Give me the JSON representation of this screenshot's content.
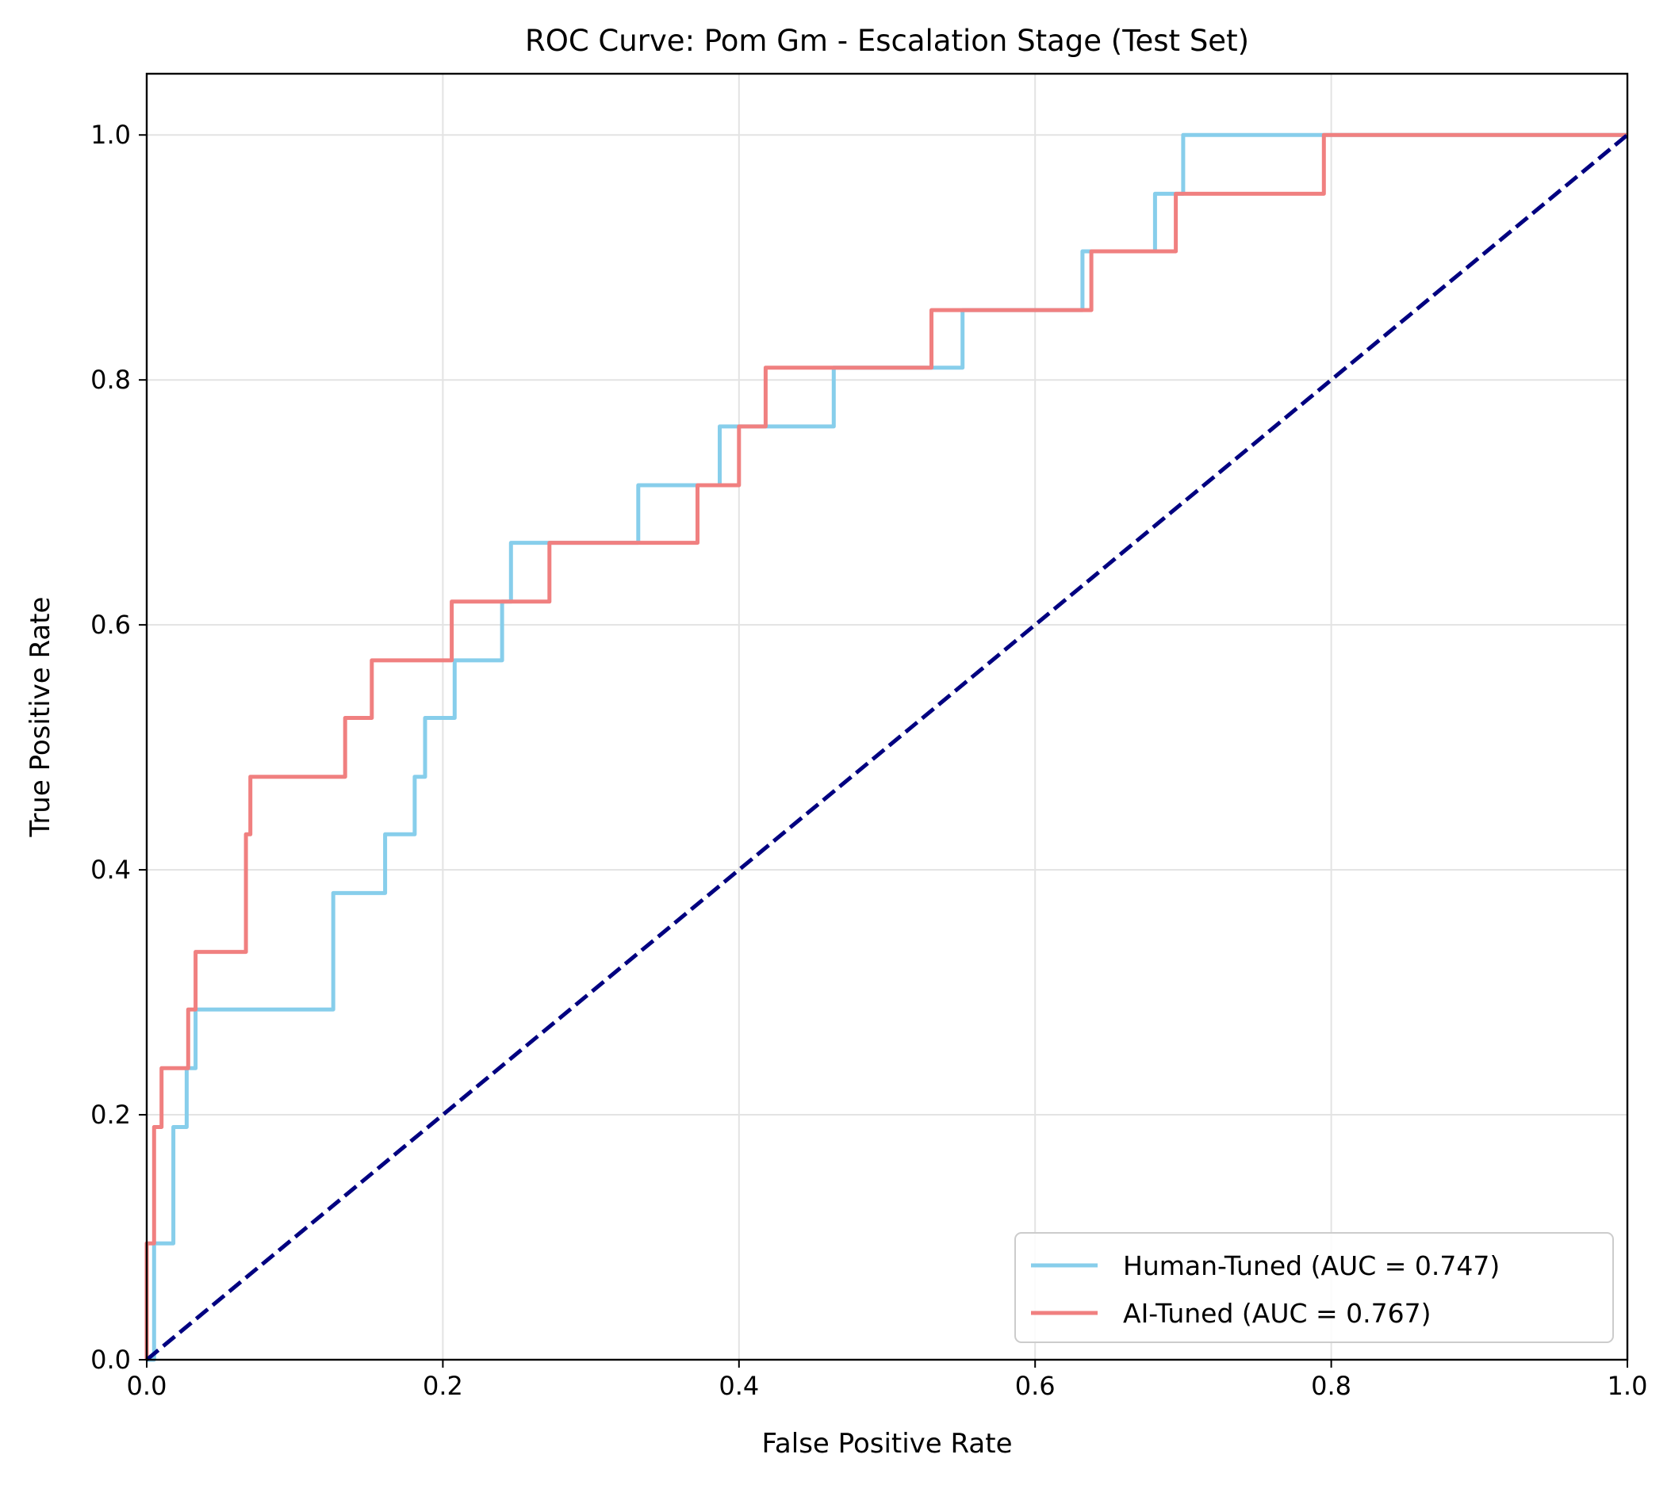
{
  "chart_data": {
    "type": "line",
    "title": "ROC Curve: Pom Gm - Escalation Stage (Test Set)",
    "xlabel": "False Positive Rate",
    "ylabel": "True Positive Rate",
    "xlim": [
      0.0,
      1.0
    ],
    "ylim": [
      0.0,
      1.05
    ],
    "xticks": [
      0.0,
      0.2,
      0.4,
      0.6,
      0.8,
      1.0
    ],
    "xtick_labels": [
      "0.0",
      "0.2",
      "0.4",
      "0.6",
      "0.8",
      "1.0"
    ],
    "yticks": [
      0.0,
      0.2,
      0.4,
      0.6,
      0.8,
      1.0
    ],
    "ytick_labels": [
      "0.0",
      "0.2",
      "0.4",
      "0.6",
      "0.8",
      "1.0"
    ],
    "grid": true,
    "legend_position": "lower-right",
    "series": [
      {
        "name": "Human-Tuned (AUC = 0.747)",
        "color": "#87ceeb",
        "x": [
          0.0,
          0.005,
          0.005,
          0.018,
          0.018,
          0.027,
          0.027,
          0.033,
          0.033,
          0.126,
          0.126,
          0.161,
          0.161,
          0.181,
          0.181,
          0.188,
          0.188,
          0.208,
          0.208,
          0.24,
          0.24,
          0.246,
          0.246,
          0.332,
          0.332,
          0.387,
          0.387,
          0.464,
          0.464,
          0.551,
          0.551,
          0.632,
          0.632,
          0.681,
          0.681,
          0.7,
          0.7,
          1.0
        ],
        "y": [
          0.0,
          0.0,
          0.095,
          0.095,
          0.19,
          0.19,
          0.238,
          0.238,
          0.286,
          0.286,
          0.381,
          0.381,
          0.429,
          0.429,
          0.476,
          0.476,
          0.524,
          0.524,
          0.571,
          0.571,
          0.619,
          0.619,
          0.667,
          0.667,
          0.714,
          0.714,
          0.762,
          0.762,
          0.81,
          0.81,
          0.857,
          0.857,
          0.905,
          0.905,
          0.952,
          0.952,
          1.0,
          1.0
        ]
      },
      {
        "name": "AI-Tuned (AUC = 0.767)",
        "color": "#f08080",
        "x": [
          0.0,
          0.0,
          0.005,
          0.005,
          0.01,
          0.01,
          0.028,
          0.028,
          0.033,
          0.033,
          0.067,
          0.067,
          0.07,
          0.07,
          0.134,
          0.134,
          0.152,
          0.152,
          0.206,
          0.206,
          0.272,
          0.272,
          0.372,
          0.372,
          0.4,
          0.4,
          0.418,
          0.418,
          0.53,
          0.53,
          0.638,
          0.638,
          0.695,
          0.695,
          0.795,
          0.795,
          1.0
        ],
        "y": [
          0.0,
          0.095,
          0.095,
          0.19,
          0.19,
          0.238,
          0.238,
          0.286,
          0.286,
          0.333,
          0.333,
          0.429,
          0.429,
          0.476,
          0.476,
          0.524,
          0.524,
          0.571,
          0.571,
          0.619,
          0.619,
          0.667,
          0.667,
          0.714,
          0.714,
          0.762,
          0.762,
          0.81,
          0.81,
          0.857,
          0.857,
          0.905,
          0.905,
          0.952,
          0.952,
          1.0,
          1.0
        ]
      },
      {
        "name": "",
        "color": "#000080",
        "style": "dashed",
        "x": [
          0.0,
          1.0
        ],
        "y": [
          0.0,
          1.0
        ]
      }
    ]
  }
}
